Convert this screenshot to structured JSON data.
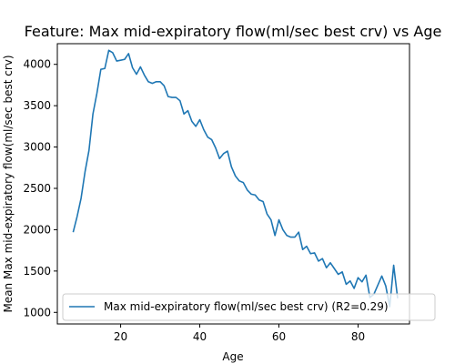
{
  "chart_data": {
    "type": "line",
    "title": "Feature: Max mid-expiratory flow(ml/sec best crv) vs Age",
    "xlabel": "Age",
    "ylabel": "Mean Max mid-expiratory flow(ml/sec best crv)",
    "xlim": [
      4,
      93
    ],
    "ylim": [
      860,
      4250
    ],
    "xticks": [
      20,
      40,
      60,
      80
    ],
    "yticks": [
      1000,
      1500,
      2000,
      2500,
      3000,
      3500,
      4000
    ],
    "grid": false,
    "legend_position": "lower-right",
    "series": [
      {
        "name": "Max mid-expiratory flow(ml/sec best crv) (R2=0.29)",
        "color": "#1f77b4",
        "x": [
          8,
          9,
          10,
          11,
          12,
          13,
          14,
          15,
          16,
          17,
          18,
          19,
          20,
          21,
          22,
          23,
          24,
          25,
          26,
          27,
          28,
          29,
          30,
          31,
          32,
          33,
          34,
          35,
          36,
          37,
          38,
          39,
          40,
          41,
          42,
          43,
          44,
          45,
          46,
          47,
          48,
          49,
          50,
          51,
          52,
          53,
          54,
          55,
          56,
          57,
          58,
          59,
          60,
          61,
          62,
          63,
          64,
          65,
          66,
          67,
          68,
          69,
          70,
          71,
          72,
          73,
          74,
          75,
          76,
          77,
          78,
          79,
          80,
          81,
          82,
          83,
          84,
          85,
          86,
          87,
          88,
          89,
          90
        ],
        "y": [
          1970,
          2160,
          2380,
          2700,
          2960,
          3400,
          3650,
          3940,
          3950,
          4170,
          4140,
          4040,
          4050,
          4060,
          4130,
          3960,
          3880,
          3970,
          3870,
          3790,
          3770,
          3790,
          3790,
          3740,
          3610,
          3600,
          3600,
          3560,
          3400,
          3440,
          3310,
          3250,
          3330,
          3210,
          3120,
          3090,
          2990,
          2860,
          2920,
          2950,
          2760,
          2650,
          2590,
          2570,
          2480,
          2430,
          2420,
          2360,
          2340,
          2190,
          2120,
          1930,
          2120,
          2000,
          1930,
          1910,
          1910,
          1970,
          1760,
          1800,
          1710,
          1720,
          1620,
          1650,
          1540,
          1600,
          1530,
          1460,
          1490,
          1340,
          1380,
          1290,
          1420,
          1370,
          1450,
          1180,
          1220,
          1330,
          1440,
          1320,
          1070,
          1570,
          1170
        ]
      }
    ]
  }
}
